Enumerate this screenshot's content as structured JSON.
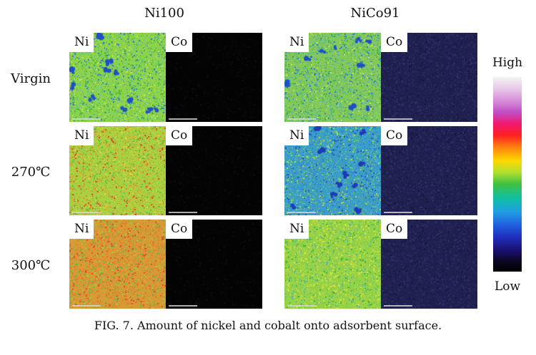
{
  "columns": [
    "Ni100",
    "NiCo91"
  ],
  "rows": [
    "Virgin",
    "270℃",
    "300℃"
  ],
  "element_labels": {
    "ni": "Ni",
    "co": "Co"
  },
  "colorbar": {
    "high": "High",
    "low": "Low"
  },
  "caption": "FIG. 7. Amount of nickel and cobalt onto adsorbent surface.",
  "map_tiles": [
    {
      "sample": "Ni100",
      "condition": "Virgin",
      "element": "Ni",
      "dominant_level": "green",
      "spots": "blue patches"
    },
    {
      "sample": "Ni100",
      "condition": "Virgin",
      "element": "Co",
      "dominant_level": "black"
    },
    {
      "sample": "NiCo91",
      "condition": "Virgin",
      "element": "Ni",
      "dominant_level": "green",
      "spots": "blue patches"
    },
    {
      "sample": "NiCo91",
      "condition": "Virgin",
      "element": "Co",
      "dominant_level": "dark navy"
    },
    {
      "sample": "Ni100",
      "condition": "270℃",
      "element": "Ni",
      "dominant_level": "yellow-orange"
    },
    {
      "sample": "Ni100",
      "condition": "270℃",
      "element": "Co",
      "dominant_level": "black"
    },
    {
      "sample": "NiCo91",
      "condition": "270℃",
      "element": "Ni",
      "dominant_level": "blue-cyan"
    },
    {
      "sample": "NiCo91",
      "condition": "270℃",
      "element": "Co",
      "dominant_level": "dark navy"
    },
    {
      "sample": "Ni100",
      "condition": "300℃",
      "element": "Ni",
      "dominant_level": "orange-red"
    },
    {
      "sample": "Ni100",
      "condition": "300℃",
      "element": "Co",
      "dominant_level": "black"
    },
    {
      "sample": "NiCo91",
      "condition": "300℃",
      "element": "Ni",
      "dominant_level": "yellow-green"
    },
    {
      "sample": "NiCo91",
      "condition": "300℃",
      "element": "Co",
      "dominant_level": "dark navy"
    }
  ],
  "colors": {
    "ni100_virgin": {
      "base": "#8cd24a",
      "dots": [
        "#3cb43c",
        "#c8e646",
        "#64c8a0",
        "#2878dc"
      ],
      "blobs": "#1e50c8"
    },
    "ni100_270": {
      "base": "#a8d040",
      "dots": [
        "#e6a028",
        "#e64628",
        "#50c050",
        "#dcdc3c"
      ]
    },
    "ni100_300": {
      "base": "#d89a34",
      "dots": [
        "#e64628",
        "#f07830",
        "#50c050",
        "#a0d040"
      ]
    },
    "nico_virgin": {
      "base": "#82c85a",
      "dots": [
        "#3cb43c",
        "#c8e646",
        "#50b4c8",
        "#2878dc"
      ],
      "blobs": "#1e50c8"
    },
    "nico_270": {
      "base": "#3c9cc8",
      "dots": [
        "#1e50c8",
        "#28b4c8",
        "#6ec85a",
        "#b4dc46"
      ],
      "blobs": "#1e3cb4"
    },
    "nico_300": {
      "base": "#96d246",
      "dots": [
        "#d2e63c",
        "#3cb43c",
        "#50b4b4",
        "#e6dc3c"
      ]
    },
    "co_ni100": {
      "base": "#030303",
      "dots": [
        "#080810",
        "#0c0c14"
      ]
    },
    "co_nico": {
      "base": "#202050",
      "dots": [
        "#2a2a62",
        "#16163e",
        "#30306e"
      ]
    }
  }
}
